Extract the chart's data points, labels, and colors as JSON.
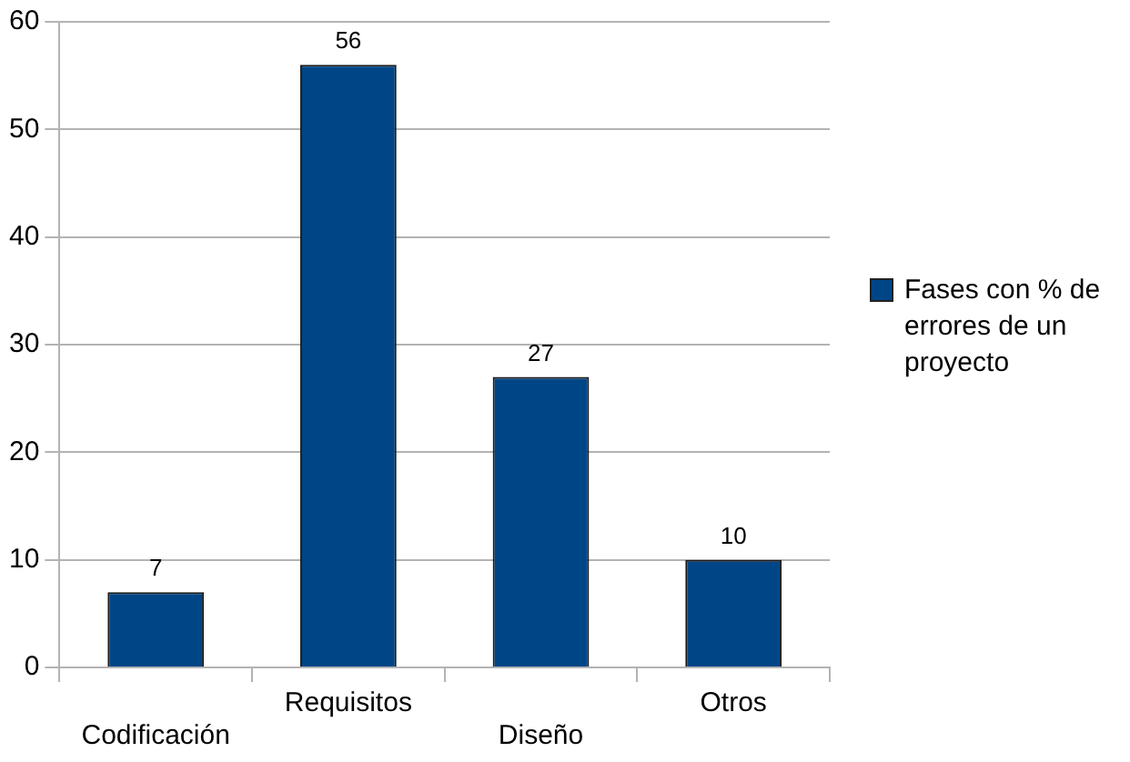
{
  "chart_data": {
    "type": "bar",
    "categories": [
      "Codificación",
      "Requisitos",
      "Diseño",
      "Otros"
    ],
    "series": [
      {
        "name": "Fases con % de errores de un proyecto",
        "color": "#004586",
        "values": [
          7,
          56,
          27,
          10
        ]
      }
    ],
    "ylim": [
      0,
      60
    ],
    "yticks": [
      0,
      10,
      20,
      30,
      40,
      50,
      60
    ],
    "grid": "y",
    "legend": "right",
    "data_labels": true
  }
}
